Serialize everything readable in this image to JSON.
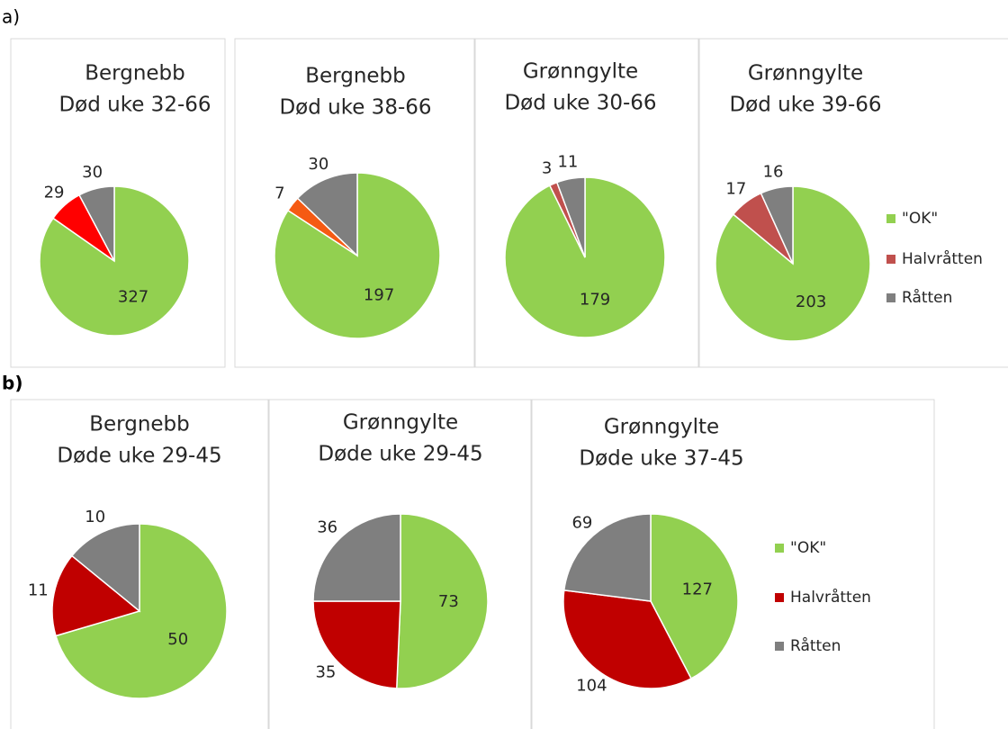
{
  "panel_labels": [
    "a)",
    "b)"
  ],
  "legends": [
    {
      "labels": [
        "\"OK\"",
        "Halvråtten",
        "Råtten"
      ],
      "colors": [
        "#92d050",
        "#c0504d",
        "#7f7f7f"
      ]
    },
    {
      "labels": [
        "\"OK\"",
        "Halvråtten",
        "Råtten"
      ],
      "colors": [
        "#92d050",
        "#c00000",
        "#7f7f7f"
      ]
    }
  ],
  "chart_data": [
    {
      "type": "pie",
      "title": [
        "Bergnebb",
        "Død uke 32-66"
      ],
      "values": [
        327,
        29,
        30
      ],
      "colors": [
        "#92d050",
        "#ff0000",
        "#7f7f7f"
      ]
    },
    {
      "type": "pie",
      "title": [
        "Bergnebb",
        "Død uke 38-66"
      ],
      "values": [
        197,
        7,
        30
      ],
      "colors": [
        "#92d050",
        "#f55a13",
        "#7f7f7f"
      ]
    },
    {
      "type": "pie",
      "title": [
        "Grønngylte",
        "Død uke 30-66"
      ],
      "values": [
        179,
        3,
        11
      ],
      "colors": [
        "#92d050",
        "#c0504d",
        "#7f7f7f"
      ]
    },
    {
      "type": "pie",
      "title": [
        "Grønngylte",
        "Død uke 39-66"
      ],
      "values": [
        203,
        17,
        16
      ],
      "colors": [
        "#92d050",
        "#c0504d",
        "#7f7f7f"
      ]
    },
    {
      "type": "pie",
      "title": [
        "Bergnebb",
        "Døde uke 29-45"
      ],
      "values": [
        50,
        11,
        10
      ],
      "colors": [
        "#92d050",
        "#c00000",
        "#7f7f7f"
      ]
    },
    {
      "type": "pie",
      "title": [
        "Grønngylte",
        "Døde uke 29-45"
      ],
      "values": [
        73,
        35,
        36
      ],
      "colors": [
        "#92d050",
        "#c00000",
        "#7f7f7f"
      ]
    },
    {
      "type": "pie",
      "title": [
        "Grønngylte",
        "Døde uke 37-45"
      ],
      "values": [
        127,
        104,
        69
      ],
      "colors": [
        "#92d050",
        "#c00000",
        "#7f7f7f"
      ]
    }
  ]
}
